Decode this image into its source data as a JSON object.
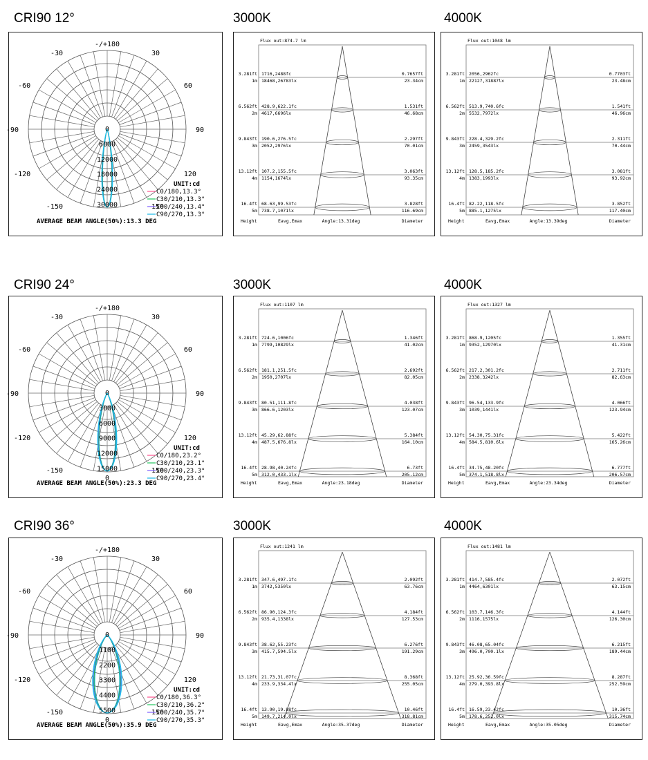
{
  "rows": [
    {
      "title": "CRI90  12°",
      "polar": {
        "top_label": "-/+180",
        "left_labels": [
          "-150",
          "-120",
          "-90",
          "-60",
          "-30"
        ],
        "right_labels": [
          "150",
          "120",
          "90",
          "60",
          "30"
        ],
        "ticks": [
          "0",
          "6000",
          "12000",
          "18000",
          "24000",
          "30000"
        ],
        "bottom_zero": "",
        "unit": "UNIT:cd",
        "legend": [
          "C0/180,13.3°",
          "C30/210,13.3°",
          "C60/240,13.4°",
          "C90/270,13.3°"
        ],
        "beam_angle_text": "AVERAGE BEAM ANGLE(50%):13.3 DEG",
        "beam_deg": 13.3
      },
      "cones": [
        {
          "cct": "3000K",
          "flux": "Flux out:874.7 lm",
          "levels": [
            {
              "h_ft": "3.281ft",
              "h_m": "1m",
              "e_fc": "1716,2488fc",
              "e_lx": "18468,26783lx",
              "d_ft": "0.7657ft",
              "d_cm": "23.34cm"
            },
            {
              "h_ft": "6.562ft",
              "h_m": "2m",
              "e_fc": "428.9,622.1fc",
              "e_lx": "4617,6696lx",
              "d_ft": "1.531ft",
              "d_cm": "46.68cm"
            },
            {
              "h_ft": "9.843ft",
              "h_m": "3m",
              "e_fc": "190.6,276.5fc",
              "e_lx": "2052,2976lx",
              "d_ft": "2.297ft",
              "d_cm": "70.01cm"
            },
            {
              "h_ft": "13.12ft",
              "h_m": "4m",
              "e_fc": "107.2,155.5fc",
              "e_lx": "1154,1674lx",
              "d_ft": "3.063ft",
              "d_cm": "93.35cm"
            },
            {
              "h_ft": "16.4ft",
              "h_m": "5m",
              "e_fc": "68.63,99.53fc",
              "e_lx": "738.7,1071lx",
              "d_ft": "3.828ft",
              "d_cm": "116.69cm"
            }
          ],
          "footer": {
            "height": "Height",
            "eavg": "Eavg,Emax",
            "angle": "Angle:13.31deg",
            "diameter": "Diameter"
          }
        },
        {
          "cct": "4000K",
          "flux": "Flux out:1048 lm",
          "levels": [
            {
              "h_ft": "3.281ft",
              "h_m": "1m",
              "e_fc": "2056,2962fc",
              "e_lx": "22127,31887lx",
              "d_ft": "0.7703ft",
              "d_cm": "23.48cm"
            },
            {
              "h_ft": "6.562ft",
              "h_m": "2m",
              "e_fc": "513.9,740.6fc",
              "e_lx": "5532,7972lx",
              "d_ft": "1.541ft",
              "d_cm": "46.96cm"
            },
            {
              "h_ft": "9.843ft",
              "h_m": "3m",
              "e_fc": "228.4,329.2fc",
              "e_lx": "2459,3543lx",
              "d_ft": "2.311ft",
              "d_cm": "70.44cm"
            },
            {
              "h_ft": "13.12ft",
              "h_m": "4m",
              "e_fc": "128.5,185.2fc",
              "e_lx": "1383,1993lx",
              "d_ft": "3.081ft",
              "d_cm": "93.92cm"
            },
            {
              "h_ft": "16.4ft",
              "h_m": "5m",
              "e_fc": "82.22,118.5fc",
              "e_lx": "885.1,1275lx",
              "d_ft": "3.852ft",
              "d_cm": "117.40cm"
            }
          ],
          "footer": {
            "height": "Height",
            "eavg": "Eavg,Emax",
            "angle": "Angle:13.39deg",
            "diameter": "Diameter"
          }
        }
      ]
    },
    {
      "title": "CRI90  24°",
      "polar": {
        "top_label": "-/+180",
        "left_labels": [
          "-150",
          "-120",
          "-90",
          "-60",
          "-30"
        ],
        "right_labels": [
          "150",
          "120",
          "90",
          "60",
          "30"
        ],
        "ticks": [
          "0",
          "3000",
          "6000",
          "9000",
          "12000",
          "15000"
        ],
        "bottom_zero": "0",
        "unit": "UNIT:cd",
        "legend": [
          "C0/180,23.2°",
          "C30/210,23.1°",
          "C60/240,23.3°",
          "C90/270,23.4°"
        ],
        "beam_angle_text": "AVERAGE BEAM ANGLE(50%):23.3 DEG",
        "beam_deg": 23.3
      },
      "cones": [
        {
          "cct": "3000K",
          "flux": "Flux out:1107 lm",
          "levels": [
            {
              "h_ft": "3.281ft",
              "h_m": "1m",
              "e_fc": "724.6,1006fc",
              "e_lx": "7799,10829lx",
              "d_ft": "1.346ft",
              "d_cm": "41.02cm"
            },
            {
              "h_ft": "6.562ft",
              "h_m": "2m",
              "e_fc": "181.1,251.5fc",
              "e_lx": "1950,2707lx",
              "d_ft": "2.692ft",
              "d_cm": "82.05cm"
            },
            {
              "h_ft": "9.843ft",
              "h_m": "3m",
              "e_fc": "80.51,111.8fc",
              "e_lx": "866.6,1203lx",
              "d_ft": "4.038ft",
              "d_cm": "123.07cm"
            },
            {
              "h_ft": "13.12ft",
              "h_m": "4m",
              "e_fc": "45.29,62.88fc",
              "e_lx": "487.5,676.8lx",
              "d_ft": "5.384ft",
              "d_cm": "164.10cm"
            },
            {
              "h_ft": "16.4ft",
              "h_m": "5m",
              "e_fc": "28.98,40.24fc",
              "e_lx": "312.0,433.1lx",
              "d_ft": "6.73ft",
              "d_cm": "205.12cm"
            }
          ],
          "footer": {
            "height": "Height",
            "eavg": "Eavg,Emax",
            "angle": "Angle:23.18deg",
            "diameter": "Diameter"
          }
        },
        {
          "cct": "4000K",
          "flux": "Flux out:1327 lm",
          "levels": [
            {
              "h_ft": "3.281ft",
              "h_m": "1m",
              "e_fc": "868.9,1205fc",
              "e_lx": "9352,12970lx",
              "d_ft": "1.355ft",
              "d_cm": "41.31cm"
            },
            {
              "h_ft": "6.562ft",
              "h_m": "2m",
              "e_fc": "217.2,301.2fc",
              "e_lx": "2338,3242lx",
              "d_ft": "2.711ft",
              "d_cm": "82.63cm"
            },
            {
              "h_ft": "9.843ft",
              "h_m": "3m",
              "e_fc": "96.54,133.9fc",
              "e_lx": "1039,1441lx",
              "d_ft": "4.066ft",
              "d_cm": "123.94cm"
            },
            {
              "h_ft": "13.12ft",
              "h_m": "4m",
              "e_fc": "54.30,75.31fc",
              "e_lx": "584.5,810.6lx",
              "d_ft": "5.422ft",
              "d_cm": "165.26cm"
            },
            {
              "h_ft": "16.4ft",
              "h_m": "5m",
              "e_fc": "34.75,48.20fc",
              "e_lx": "374.1,518.8lx",
              "d_ft": "6.777ft",
              "d_cm": "206.57cm"
            }
          ],
          "footer": {
            "height": "Height",
            "eavg": "Eavg,Emax",
            "angle": "Angle:23.34deg",
            "diameter": "Diameter"
          }
        }
      ]
    },
    {
      "title": "CRI90  36°",
      "polar": {
        "top_label": "-/+180",
        "left_labels": [
          "-150",
          "-120",
          "-90",
          "-60",
          "-30"
        ],
        "right_labels": [
          "150",
          "120",
          "90",
          "60",
          "30"
        ],
        "ticks": [
          "0",
          "1100",
          "2200",
          "3300",
          "4400",
          "5500"
        ],
        "bottom_zero": "0",
        "unit": "UNIT:cd",
        "legend": [
          "C0/180,36.3°",
          "C30/210,36.2°",
          "C60/240,35.7°",
          "C90/270,35.3°"
        ],
        "beam_angle_text": "AVERAGE BEAM ANGLE(50%):35.9 DEG",
        "beam_deg": 35.9
      },
      "cones": [
        {
          "cct": "3000K",
          "flux": "Flux out:1241 lm",
          "levels": [
            {
              "h_ft": "3.281ft",
              "h_m": "1m",
              "e_fc": "347.6,497.1fc",
              "e_lx": "3742,5350lx",
              "d_ft": "2.092ft",
              "d_cm": "63.76cm"
            },
            {
              "h_ft": "6.562ft",
              "h_m": "2m",
              "e_fc": "86.90,124.3fc",
              "e_lx": "935.4,1338lx",
              "d_ft": "4.184ft",
              "d_cm": "127.53cm"
            },
            {
              "h_ft": "9.843ft",
              "h_m": "3m",
              "e_fc": "38.62,55.23fc",
              "e_lx": "415.7,594.5lx",
              "d_ft": "6.276ft",
              "d_cm": "191.29cm"
            },
            {
              "h_ft": "13.12ft",
              "h_m": "4m",
              "e_fc": "21.73,31.07fc",
              "e_lx": "233.9,334.4lx",
              "d_ft": "8.368ft",
              "d_cm": "255.05cm"
            },
            {
              "h_ft": "16.4ft",
              "h_m": "5m",
              "e_fc": "13.90,19.88fc",
              "e_lx": "149.7,214.0lx",
              "d_ft": "10.46ft",
              "d_cm": "318.81cm"
            }
          ],
          "footer": {
            "height": "Height",
            "eavg": "Eavg,Emax",
            "angle": "Angle:35.37deg",
            "diameter": "Diameter"
          }
        },
        {
          "cct": "4000K",
          "flux": "Flux out:1481 lm",
          "levels": [
            {
              "h_ft": "3.281ft",
              "h_m": "1m",
              "e_fc": "414.7,585.4fc",
              "e_lx": "4464,6301lx",
              "d_ft": "2.072ft",
              "d_cm": "63.15cm"
            },
            {
              "h_ft": "6.562ft",
              "h_m": "2m",
              "e_fc": "103.7,146.3fc",
              "e_lx": "1116,1575lx",
              "d_ft": "4.144ft",
              "d_cm": "126.30cm"
            },
            {
              "h_ft": "9.843ft",
              "h_m": "3m",
              "e_fc": "46.08,65.04fc",
              "e_lx": "496.0,700.1lx",
              "d_ft": "6.215ft",
              "d_cm": "189.44cm"
            },
            {
              "h_ft": "13.12ft",
              "h_m": "4m",
              "e_fc": "25.92,36.59fc",
              "e_lx": "279.0,393.8lx",
              "d_ft": "8.287ft",
              "d_cm": "252.59cm"
            },
            {
              "h_ft": "16.4ft",
              "h_m": "5m",
              "e_fc": "16.59,23.42fc",
              "e_lx": "178.6,252.0lx",
              "d_ft": "10.36ft",
              "d_cm": "315.74cm"
            }
          ],
          "footer": {
            "height": "Height",
            "eavg": "Eavg,Emax",
            "angle": "Angle:35.05deg",
            "diameter": "Diameter"
          }
        }
      ]
    }
  ],
  "legend_colors": [
    "#ff4f8b",
    "#22c55e",
    "#7c5cff",
    "#18b7e6"
  ],
  "curve_colors": [
    "#1db7d6",
    "#2aa84a",
    "#4f7cff",
    "#16c5e8"
  ]
}
